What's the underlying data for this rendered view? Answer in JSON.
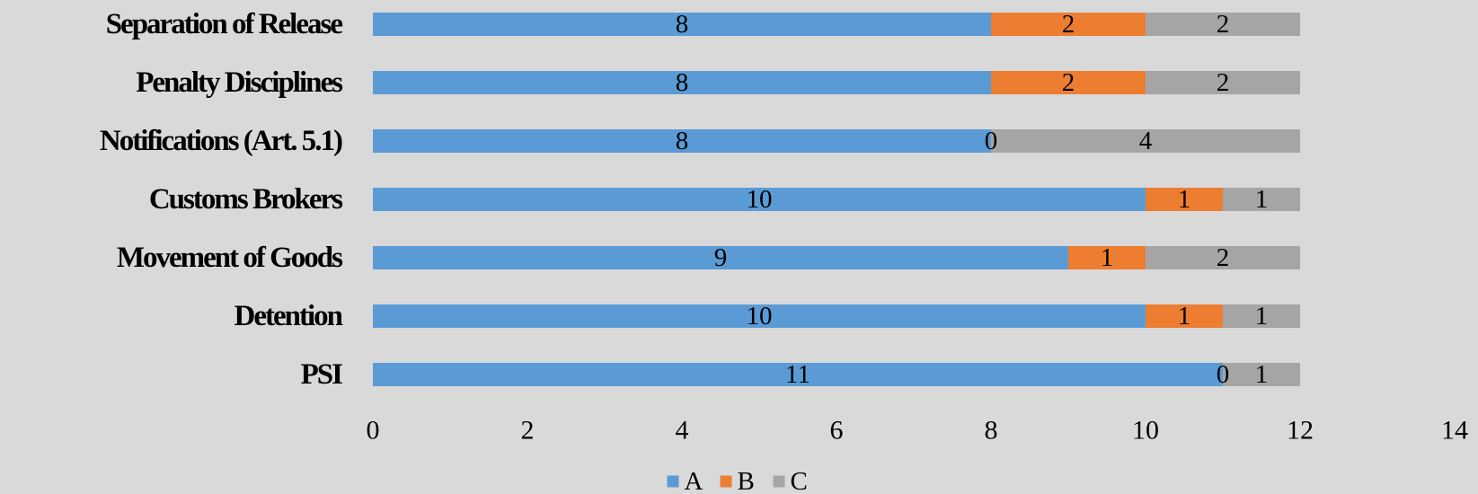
{
  "chart_data": {
    "type": "bar",
    "orientation": "horizontal",
    "stacked": true,
    "title": "",
    "xlabel": "",
    "ylabel": "",
    "categories": [
      "Separation of Release",
      "Penalty Disciplines",
      "Notifications  (Art. 5.1)",
      "Customs Brokers",
      "Movement of Goods",
      "Detention",
      "PSI"
    ],
    "series": [
      {
        "name": "A",
        "color": "#5b9bd5",
        "values": [
          8,
          8,
          8,
          10,
          9,
          10,
          11
        ]
      },
      {
        "name": "B",
        "color": "#ed7d31",
        "values": [
          2,
          2,
          0,
          1,
          1,
          1,
          0
        ]
      },
      {
        "name": "C",
        "color": "#a5a5a5",
        "values": [
          2,
          2,
          4,
          1,
          2,
          1,
          1
        ]
      }
    ],
    "xlim": [
      0,
      14
    ],
    "x_ticks": [
      "0",
      "2",
      "4",
      "6",
      "8",
      "10",
      "12",
      "14"
    ],
    "grid": false,
    "data_labels": true,
    "legend_position": "bottom"
  }
}
